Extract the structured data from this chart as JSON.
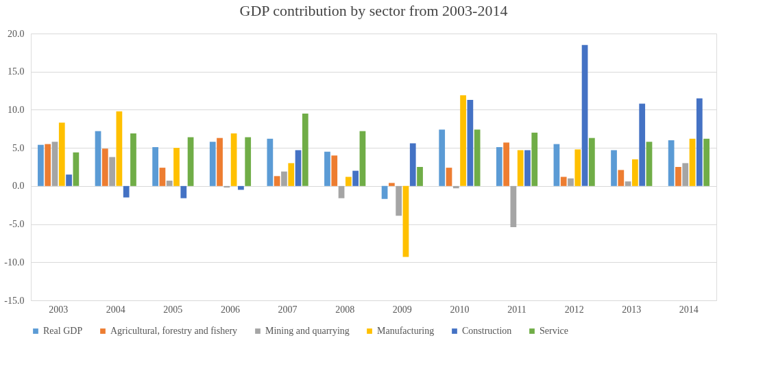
{
  "chart_data": {
    "type": "bar",
    "title": "GDP contribution by sector from 2003-2014",
    "categories": [
      "2003",
      "2004",
      "2005",
      "2006",
      "2007",
      "2008",
      "2009",
      "2010",
      "2011",
      "2012",
      "2013",
      "2014"
    ],
    "series": [
      {
        "name": "Real GDP",
        "color": "#5b9bd5",
        "values": [
          5.4,
          7.2,
          5.1,
          5.8,
          6.2,
          4.5,
          -1.7,
          7.4,
          5.1,
          5.5,
          4.7,
          6.0
        ]
      },
      {
        "name": "Agricultural, forestry and fishery",
        "color": "#ed7d31",
        "values": [
          5.5,
          4.9,
          2.4,
          6.3,
          1.3,
          4.0,
          0.4,
          2.4,
          5.7,
          1.2,
          2.1,
          2.5
        ]
      },
      {
        "name": "Mining and quarrying",
        "color": "#a5a5a5",
        "values": [
          5.8,
          3.8,
          0.7,
          -0.2,
          1.9,
          -1.6,
          -3.9,
          -0.3,
          -5.4,
          1.0,
          0.6,
          3.0
        ]
      },
      {
        "name": "Manufacturing",
        "color": "#ffc000",
        "values": [
          8.3,
          9.8,
          5.0,
          6.9,
          3.0,
          1.2,
          -9.3,
          11.9,
          4.7,
          4.8,
          3.5,
          6.2
        ]
      },
      {
        "name": "Construction",
        "color": "#4472c4",
        "values": [
          1.5,
          -1.5,
          -1.6,
          -0.5,
          4.7,
          2.0,
          5.6,
          11.3,
          4.7,
          18.5,
          10.8,
          11.5
        ]
      },
      {
        "name": "Service",
        "color": "#70ad47",
        "values": [
          4.4,
          6.9,
          6.4,
          6.4,
          9.5,
          7.2,
          2.5,
          7.4,
          7.0,
          6.3,
          5.8,
          6.2
        ]
      }
    ],
    "ylim": [
      -15,
      20
    ],
    "yticks": [
      {
        "value": -15,
        "label": "-15.0"
      },
      {
        "value": -10,
        "label": "-10.0"
      },
      {
        "value": -5,
        "label": "-5.0"
      },
      {
        "value": 0,
        "label": "0.0"
      },
      {
        "value": 5,
        "label": "5.0"
      },
      {
        "value": 10,
        "label": "10.0"
      },
      {
        "value": 15,
        "label": "15.0"
      },
      {
        "value": 20,
        "label": "20.0"
      }
    ],
    "grid": "y",
    "legend": "bottom"
  }
}
